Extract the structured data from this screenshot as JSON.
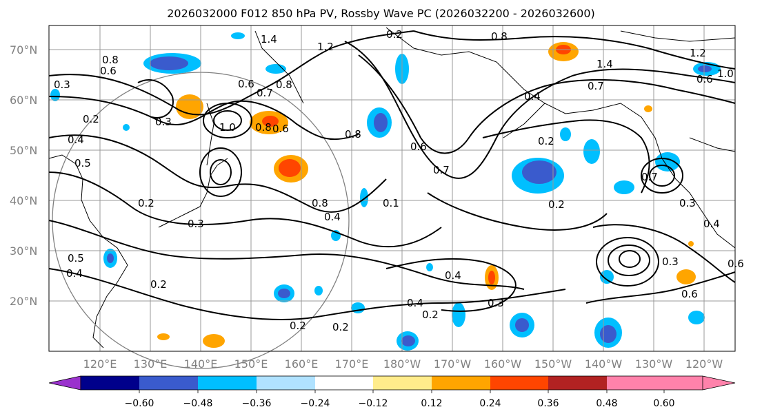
{
  "title": "2026032000 F012 850 hPa PV, Rossby Wave PC (2026032200 - 2026032600)",
  "lat_labels": [
    "70°N",
    "60°N",
    "50°N",
    "40°N",
    "30°N",
    "20°N"
  ],
  "lon_labels": [
    "120°E",
    "130°E",
    "140°E",
    "150°E",
    "160°E",
    "170°E",
    "180°W",
    "170°W",
    "160°W",
    "150°W",
    "140°W",
    "130°W",
    "120°W"
  ],
  "colorbar": {
    "colors": [
      "#9a32cd",
      "#00008b",
      "#3a5bcd",
      "#00bfff",
      "#b0e2ff",
      "#ffffff",
      "#ffec8b",
      "#ffa500",
      "#ff4500",
      "#b22222",
      "#ff82ab"
    ],
    "tick_labels": [
      "−0.60",
      "−0.48",
      "−0.36",
      "−0.24",
      "−0.12",
      "0.12",
      "0.24",
      "0.36",
      "0.48",
      "0.60"
    ]
  },
  "contour_labels": [
    "1.4",
    "0.2",
    "0.8",
    "1.2",
    "0.6",
    "0.8",
    "0.3",
    "0.6",
    "0.2",
    "0.4",
    "0.5",
    "1.0",
    "0.8",
    "0.6",
    "0.7",
    "0.8",
    "0.6",
    "0.7",
    "0.2",
    "0.8",
    "0.4",
    "0.2",
    "0.3",
    "0.1",
    "0.2",
    "0.7",
    "0.3",
    "0.4",
    "0.6",
    "0.5",
    "0.4",
    "0.3",
    "0.2",
    "0.4",
    "0.2",
    "0.2",
    "0.2",
    "0.3",
    "0.4",
    "0.6",
    "0.7",
    "0.6",
    "1.4",
    "1.2",
    "1.0",
    "0.8",
    "0.3",
    "0.4"
  ]
}
